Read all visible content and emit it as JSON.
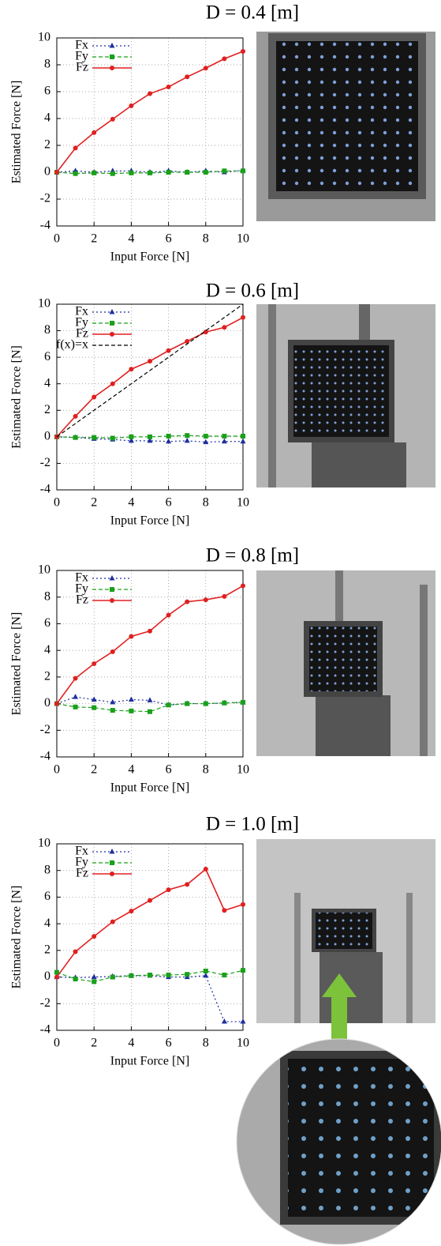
{
  "chart_data": [
    {
      "type": "line",
      "title": "D = 0.4 [m]",
      "x_label": "Input Force [N]",
      "y_label": "Estimated Force [N]",
      "x": [
        0,
        1,
        2,
        3,
        4,
        5,
        6,
        7,
        8,
        9,
        10
      ],
      "xlim": [
        0,
        10
      ],
      "xticks": [
        0,
        2,
        4,
        6,
        8,
        10
      ],
      "ylim": [
        -4,
        10
      ],
      "yticks": [
        -4,
        -2,
        0,
        2,
        4,
        6,
        8,
        10
      ],
      "grid": true,
      "legend": "upper left",
      "series": [
        {
          "name": "Fx",
          "color": "#1f2f9f",
          "style": "dotted",
          "marker": "triangle",
          "values": [
            0,
            0.1,
            0.0,
            0.1,
            0.1,
            0.0,
            0.1,
            0.0,
            0.1,
            0.0,
            0.15
          ]
        },
        {
          "name": "Fy",
          "color": "#1aa01a",
          "style": "dashed",
          "marker": "square",
          "values": [
            0,
            -0.1,
            -0.05,
            -0.1,
            -0.05,
            -0.05,
            0.0,
            0.0,
            0.0,
            0.1,
            0.1
          ]
        },
        {
          "name": "Fz",
          "color": "#e02020",
          "style": "solid",
          "marker": "circle",
          "values": [
            0,
            1.8,
            2.95,
            3.95,
            4.95,
            5.85,
            6.35,
            7.1,
            7.75,
            8.45,
            9.0
          ]
        }
      ]
    },
    {
      "type": "line",
      "title": "D = 0.6 [m]",
      "x_label": "Input Force [N]",
      "y_label": "Estimated Force [N]",
      "x": [
        0,
        1,
        2,
        3,
        4,
        5,
        6,
        7,
        8,
        9,
        10
      ],
      "xlim": [
        0,
        10
      ],
      "xticks": [
        0,
        2,
        4,
        6,
        8,
        10
      ],
      "ylim": [
        -4,
        10
      ],
      "yticks": [
        -4,
        -2,
        0,
        2,
        4,
        6,
        8,
        10
      ],
      "grid": true,
      "legend": "upper left",
      "series": [
        {
          "name": "Fx",
          "color": "#1f2f9f",
          "style": "dotted",
          "marker": "triangle",
          "values": [
            0,
            -0.05,
            -0.15,
            -0.2,
            -0.3,
            -0.3,
            -0.35,
            -0.3,
            -0.4,
            -0.35,
            -0.35
          ]
        },
        {
          "name": "Fy",
          "color": "#1aa01a",
          "style": "dashed",
          "marker": "square",
          "values": [
            0,
            -0.05,
            -0.05,
            -0.1,
            0,
            0,
            0.05,
            0.1,
            0.05,
            0.05,
            0.05
          ]
        },
        {
          "name": "Fz",
          "color": "#e02020",
          "style": "solid",
          "marker": "circle",
          "values": [
            0,
            1.55,
            3.0,
            4.0,
            5.1,
            5.7,
            6.5,
            7.2,
            7.9,
            8.25,
            9.0
          ]
        },
        {
          "name": "f(x)=x",
          "color": "#000000",
          "style": "dashed",
          "marker": "none",
          "values": [
            0,
            1,
            2,
            3,
            4,
            5,
            6,
            7,
            8,
            9,
            10
          ]
        }
      ]
    },
    {
      "type": "line",
      "title": "D = 0.8 [m]",
      "x_label": "Input Force [N]",
      "y_label": "Estimated Force [N]",
      "x": [
        0,
        1,
        2,
        3,
        4,
        5,
        6,
        7,
        8,
        9,
        10
      ],
      "xlim": [
        0,
        10
      ],
      "xticks": [
        0,
        2,
        4,
        6,
        8,
        10
      ],
      "ylim": [
        -4,
        10
      ],
      "yticks": [
        -4,
        -2,
        0,
        2,
        4,
        6,
        8,
        10
      ],
      "grid": true,
      "legend": "upper left",
      "series": [
        {
          "name": "Fx",
          "color": "#1f2f9f",
          "style": "dotted",
          "marker": "triangle",
          "values": [
            0,
            0.5,
            0.3,
            0.1,
            0.3,
            0.25,
            -0.1,
            0,
            0,
            0.05,
            0.1
          ]
        },
        {
          "name": "Fy",
          "color": "#1aa01a",
          "style": "dashed",
          "marker": "square",
          "values": [
            0,
            -0.25,
            -0.3,
            -0.5,
            -0.55,
            -0.6,
            -0.1,
            0,
            0,
            0.05,
            0.1
          ]
        },
        {
          "name": "Fz",
          "color": "#e02020",
          "style": "solid",
          "marker": "circle",
          "values": [
            0,
            1.9,
            3.0,
            3.9,
            5.05,
            5.45,
            6.65,
            7.65,
            7.8,
            8.05,
            8.85
          ]
        }
      ]
    },
    {
      "type": "line",
      "title": "D = 1.0 [m]",
      "x_label": "Input Force [N]",
      "y_label": "Estimated Force [N]",
      "x": [
        0,
        1,
        2,
        3,
        4,
        5,
        6,
        7,
        8,
        9,
        10
      ],
      "xlim": [
        0,
        10
      ],
      "xticks": [
        0,
        2,
        4,
        6,
        8,
        10
      ],
      "ylim": [
        -4,
        10
      ],
      "yticks": [
        -4,
        -2,
        0,
        2,
        4,
        6,
        8,
        10
      ],
      "grid": true,
      "legend": "upper left",
      "series": [
        {
          "name": "Fx",
          "color": "#1f2f9f",
          "style": "dotted",
          "marker": "triangle",
          "values": [
            0,
            -0.05,
            0,
            0.05,
            0.1,
            0.1,
            0,
            0,
            0.1,
            -3.35,
            -3.35
          ]
        },
        {
          "name": "Fy",
          "color": "#1aa01a",
          "style": "dashed",
          "marker": "square",
          "values": [
            0.35,
            -0.15,
            -0.35,
            0,
            0.1,
            0.15,
            0.15,
            0.2,
            0.45,
            0.15,
            0.5
          ]
        },
        {
          "name": "Fz",
          "color": "#e02020",
          "style": "solid",
          "marker": "circle",
          "values": [
            0,
            1.9,
            3.05,
            4.15,
            4.95,
            5.75,
            6.55,
            6.95,
            8.1,
            5.0,
            5.45
          ]
        }
      ]
    }
  ]
}
